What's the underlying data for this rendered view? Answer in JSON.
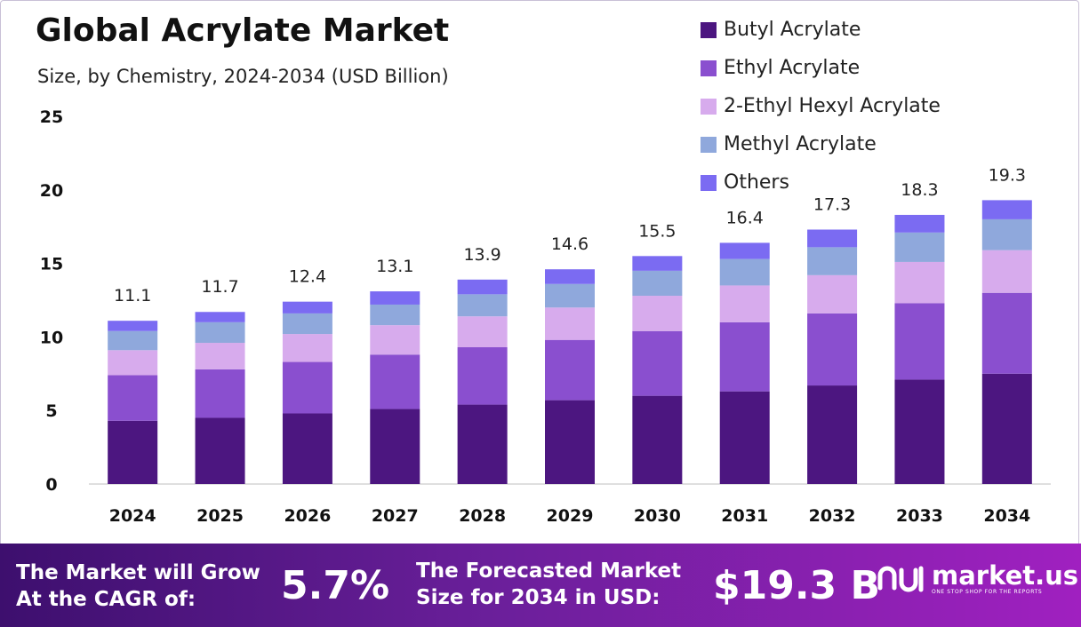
{
  "title": "Global Acrylate Market",
  "subtitle": "Size, by Chemistry, 2024-2034 (USD Billion)",
  "colors": {
    "butyl": "#4c1680",
    "ethyl": "#8a4fcf",
    "hexyl": "#d7abed",
    "methyl": "#8fa8dc",
    "others": "#7b6bf2"
  },
  "chart_data": {
    "type": "bar",
    "stacked": true,
    "categories": [
      "2024",
      "2025",
      "2026",
      "2027",
      "2028",
      "2029",
      "2030",
      "2031",
      "2032",
      "2033",
      "2034"
    ],
    "series": [
      {
        "name": "Butyl Acrylate",
        "values": [
          4.3,
          4.5,
          4.8,
          5.1,
          5.4,
          5.7,
          6.0,
          6.3,
          6.7,
          7.1,
          7.5
        ]
      },
      {
        "name": "Ethyl Acrylate",
        "values": [
          3.1,
          3.3,
          3.5,
          3.7,
          3.9,
          4.1,
          4.4,
          4.7,
          4.9,
          5.2,
          5.5
        ]
      },
      {
        "name": "2-Ethyl Hexyl Acrylate",
        "values": [
          1.7,
          1.8,
          1.9,
          2.0,
          2.1,
          2.2,
          2.4,
          2.5,
          2.6,
          2.8,
          2.9
        ]
      },
      {
        "name": "Methyl Acrylate",
        "values": [
          1.3,
          1.4,
          1.4,
          1.4,
          1.5,
          1.6,
          1.7,
          1.8,
          1.9,
          2.0,
          2.1
        ]
      },
      {
        "name": "Others",
        "values": [
          0.7,
          0.7,
          0.8,
          0.9,
          1.0,
          1.0,
          1.0,
          1.1,
          1.2,
          1.2,
          1.3
        ]
      }
    ],
    "totals": [
      "11.1",
      "11.7",
      "12.4",
      "13.1",
      "13.9",
      "14.6",
      "15.5",
      "16.4",
      "17.3",
      "18.3",
      "19.3"
    ],
    "yticks": [
      "0",
      "5",
      "10",
      "15",
      "20",
      "25"
    ],
    "ylim": [
      0,
      25
    ],
    "grid": false,
    "legend": "top-right"
  },
  "footer": {
    "cagr_label_line1": "The Market will Grow",
    "cagr_label_line2": "At the CAGR of:",
    "cagr_value": "5.7%",
    "forecast_label_line1": "The Forecasted Market",
    "forecast_label_line2": "Size for 2034 in USD:",
    "forecast_value": "$19.3 B"
  },
  "brand": {
    "name": "market.us",
    "tagline": "ONE STOP SHOP FOR THE REPORTS"
  }
}
